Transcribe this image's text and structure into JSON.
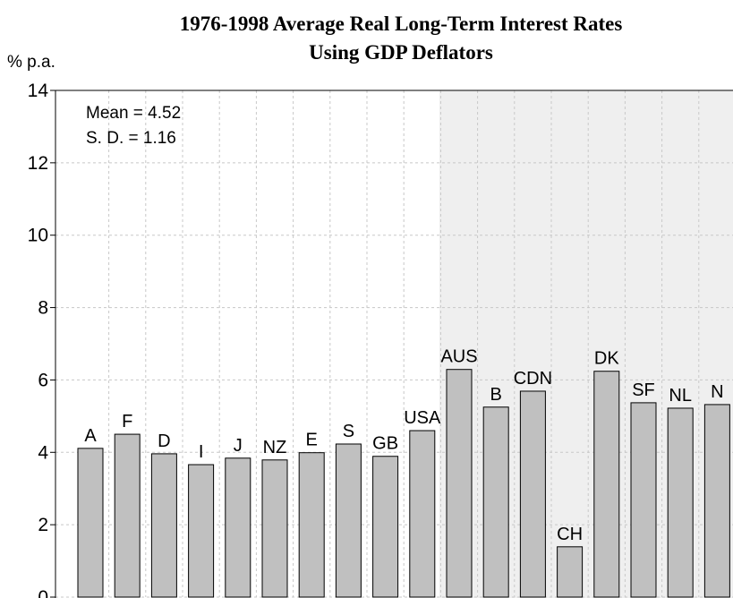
{
  "chart_data": {
    "type": "bar",
    "title": [
      "1976-1998 Average Real Long-Term Interest Rates",
      "Using GDP Deflators"
    ],
    "y_axis_label": "% p.a.",
    "annotations": [
      "Mean = 4.52",
      "S. D. = 1.16"
    ],
    "categories": [
      "A",
      "F",
      "D",
      "I",
      "J",
      "NZ",
      "E",
      "S",
      "GB",
      "USA",
      "AUS",
      "B",
      "CDN",
      "CH",
      "DK",
      "SF",
      "NL",
      "N"
    ],
    "values": [
      4.11,
      4.5,
      3.96,
      3.66,
      3.84,
      3.79,
      3.99,
      4.23,
      3.89,
      4.6,
      6.29,
      5.25,
      5.69,
      1.39,
      6.24,
      5.37,
      5.22,
      5.32
    ],
    "color": "#c0c0c0",
    "ylim": [
      0,
      14
    ],
    "yticks": [
      0,
      2,
      4,
      6,
      8,
      10,
      12,
      14
    ],
    "grid": true
  }
}
